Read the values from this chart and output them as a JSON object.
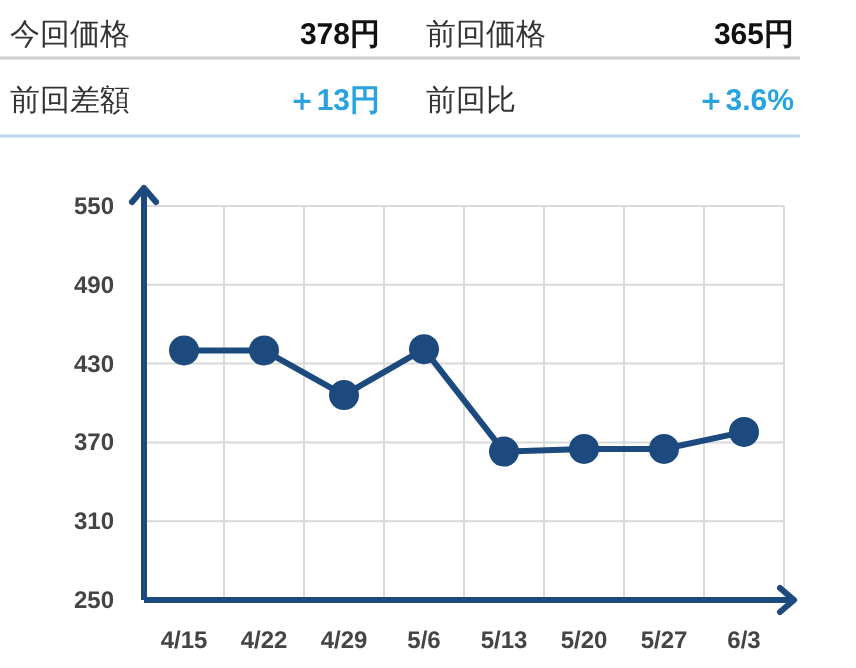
{
  "chart_data": {
    "type": "line",
    "annotations": [
      "今回価格",
      "378円",
      "前回価格",
      "365円",
      "前回差額",
      "＋13円",
      "前回比",
      "＋3.6%"
    ],
    "categories": [
      "4/15",
      "4/22",
      "4/29",
      "5/6",
      "5/13",
      "5/20",
      "5/27",
      "6/3"
    ],
    "series": [
      {
        "color": "#1d4a7e",
        "values": [
          440,
          440,
          406,
          441,
          363,
          365,
          365,
          378
        ]
      }
    ],
    "ylim": [
      250,
      550
    ],
    "yticks": [
      250,
      310,
      370,
      430,
      490,
      550
    ],
    "grid": true,
    "marker": "circle",
    "line_style": "solid"
  }
}
